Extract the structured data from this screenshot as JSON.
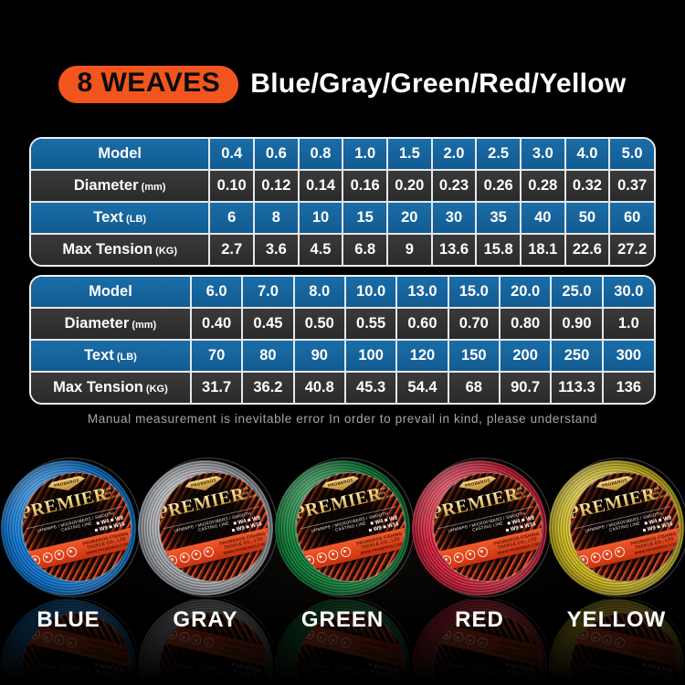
{
  "header": {
    "badge": "8 WEAVES",
    "title": "Blue/Gray/Green/Red/Yellow"
  },
  "tables": [
    {
      "rows": [
        {
          "label": "Model",
          "unit": "",
          "values": [
            "0.4",
            "0.6",
            "0.8",
            "1.0",
            "1.5",
            "2.0",
            "2.5",
            "3.0",
            "4.0",
            "5.0"
          ]
        },
        {
          "label": "Diameter",
          "unit": "(mm)",
          "values": [
            "0.10",
            "0.12",
            "0.14",
            "0.16",
            "0.20",
            "0.23",
            "0.26",
            "0.28",
            "0.32",
            "0.37"
          ]
        },
        {
          "label": "Text",
          "unit": "(LB)",
          "values": [
            "6",
            "8",
            "10",
            "15",
            "20",
            "30",
            "35",
            "40",
            "50",
            "60"
          ]
        },
        {
          "label": "Max Tension",
          "unit": "(KG)",
          "values": [
            "2.7",
            "3.6",
            "4.5",
            "6.8",
            "9",
            "13.6",
            "15.8",
            "18.1",
            "22.6",
            "27.2"
          ]
        }
      ]
    },
    {
      "rows": [
        {
          "label": "Model",
          "unit": "",
          "values": [
            "6.0",
            "7.0",
            "8.0",
            "10.0",
            "13.0",
            "15.0",
            "20.0",
            "25.0",
            "30.0"
          ]
        },
        {
          "label": "Diameter",
          "unit": "(mm)",
          "values": [
            "0.40",
            "0.45",
            "0.50",
            "0.55",
            "0.60",
            "0.70",
            "0.80",
            "0.90",
            "1.0"
          ]
        },
        {
          "label": "Text",
          "unit": "(LB)",
          "values": [
            "70",
            "80",
            "90",
            "100",
            "120",
            "150",
            "200",
            "250",
            "300"
          ]
        },
        {
          "label": "Max Tension",
          "unit": "(KG)",
          "values": [
            "31.7",
            "36.2",
            "40.8",
            "45.3",
            "54.4",
            "68",
            "90.7",
            "113.3",
            "136"
          ]
        }
      ]
    }
  ],
  "disclaimer": "Manual measurement is inevitable error In order to prevail in kind, please understand",
  "spools": {
    "brand": "PROBEROS",
    "product": "PREMIER",
    "subtitle1": "PE LINE 8 WEAVE",
    "subtitle2": "FROM JAPAN",
    "features": "UHMWPE / MICROFIBERS / SMOOTH CASTING LINE",
    "specs_line1": "■ W4  ■ W8",
    "specs_line2": "■ W9  ■ W16",
    "band_line1": "PROBEROS FISHING TACKLE CO., LTD",
    "band_line2": "WWW.PROBEROS.COM",
    "items": [
      {
        "name": "BLUE",
        "line_color": "#1f8fe4",
        "line_dark": "#0b57a6"
      },
      {
        "name": "GRAY",
        "line_color": "#b9bdc2",
        "line_dark": "#777b80"
      },
      {
        "name": "GREEN",
        "line_color": "#219a4c",
        "line_dark": "#0c5a28"
      },
      {
        "name": "RED",
        "line_color": "#ec3a52",
        "line_dark": "#9c1428"
      },
      {
        "name": "YELLOW",
        "line_color": "#e0cc32",
        "line_dark": "#9e8e14"
      }
    ]
  },
  "colors": {
    "accent_orange": "#f2551e",
    "table_blue": "#15639e",
    "table_dark": "#2f2f2f",
    "band_orange": "#e8491f",
    "premier_gold": "#e3b659"
  }
}
